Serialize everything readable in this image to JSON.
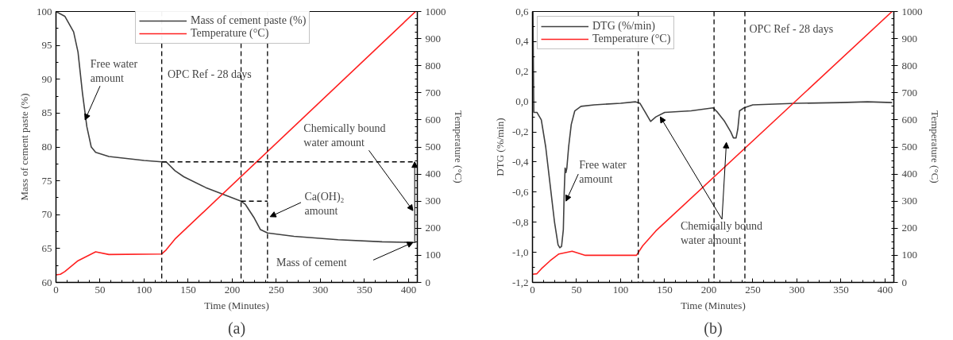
{
  "chart_data": [
    {
      "type": "line",
      "title": "(a)",
      "xlabel": "Time (Minutes)",
      "ylabel": "Mass of cement paste (%)",
      "y2label": "Temperature (°C)",
      "xlim": [
        0,
        410
      ],
      "xticks": [
        0,
        50,
        100,
        150,
        200,
        250,
        300,
        350,
        400
      ],
      "ylim": [
        60,
        100
      ],
      "yticks": [
        60,
        65,
        70,
        75,
        80,
        85,
        90,
        95,
        100
      ],
      "y2lim": [
        0,
        1000
      ],
      "y2ticks": [
        0,
        100,
        200,
        300,
        400,
        500,
        600,
        700,
        800,
        900,
        1000
      ],
      "grid": false,
      "legend": "top",
      "line_style": "solid",
      "marker": "none",
      "series": [
        {
          "name": "Mass of cement paste (%)",
          "color": "#404040",
          "x": [
            0,
            10,
            20,
            25,
            30,
            35,
            40,
            45,
            60,
            100,
            120,
            125,
            135,
            145,
            170,
            190,
            210,
            215,
            225,
            232,
            240,
            270,
            320,
            370,
            408
          ],
          "values": [
            100,
            99.3,
            97,
            94,
            88,
            83,
            80,
            79.2,
            78.6,
            78,
            77.8,
            77.8,
            76.5,
            75.6,
            74,
            73,
            72,
            71.5,
            69.5,
            67.8,
            67.3,
            66.8,
            66.3,
            66,
            65.9
          ]
        },
        {
          "name": "Temperature (°C)",
          "color": "#ff2020",
          "axis": "y2",
          "x": [
            0,
            5,
            10,
            25,
            45,
            60,
            120,
            125,
            135,
            408
          ],
          "values": [
            28,
            30,
            40,
            80,
            113,
            103,
            105,
            120,
            160,
            1000
          ]
        },
        {
          "color": "#000000",
          "line_style": "dashed",
          "x": [
            120,
            408
          ],
          "values": [
            77.8,
            77.8
          ]
        },
        {
          "color": "#000000",
          "line_style": "dashed",
          "x": [
            210,
            240
          ],
          "values": [
            72,
            72
          ]
        }
      ],
      "ref_lines": [
        {
          "axis": "x",
          "value": 120,
          "line_style": "dashed",
          "color": "#000000"
        },
        {
          "axis": "x",
          "value": 210,
          "line_style": "dashed",
          "color": "#000000"
        },
        {
          "axis": "x",
          "value": 240,
          "line_style": "dashed",
          "color": "#000000"
        }
      ],
      "annotations": [
        {
          "text": "Free water\namount",
          "x": 33,
          "y": 84
        },
        "OPC Ref - 28 days",
        "Chemically bound\nwater amount",
        {
          "text": "Ca(OH)₂\namount",
          "x": 243,
          "y": 69.7
        },
        "Mass of cement"
      ]
    },
    {
      "type": "line",
      "title": "(b)",
      "xlabel": "Time (Minutes)",
      "ylabel": "DTG (%/min)",
      "y2label": "Temperature (°C)",
      "xlim": [
        0,
        410
      ],
      "xticks": [
        0,
        50,
        100,
        150,
        200,
        250,
        300,
        350,
        400
      ],
      "ylim": [
        -1.2,
        0.6
      ],
      "yticks": [
        {
          "value": -1.2,
          "label": "-1,2"
        },
        {
          "value": -1.0,
          "label": "-1,0"
        },
        {
          "value": -0.8,
          "label": "-0,8"
        },
        {
          "value": -0.6,
          "label": "-0,6"
        },
        {
          "value": -0.4,
          "label": "-0,4"
        },
        {
          "value": -0.2,
          "label": "-0,2"
        },
        {
          "value": 0.0,
          "label": "0,0"
        },
        {
          "value": 0.2,
          "label": "0,2"
        },
        {
          "value": 0.4,
          "label": "0,4"
        },
        {
          "value": 0.6,
          "label": "0,6"
        }
      ],
      "y2lim": [
        0,
        1000
      ],
      "y2ticks": [
        0,
        100,
        200,
        300,
        400,
        500,
        600,
        700,
        800,
        900,
        1000
      ],
      "grid": false,
      "legend": "top left",
      "line_style": "solid",
      "marker": "none",
      "series": [
        {
          "name": "DTG (%/min)",
          "color": "#404040",
          "x": [
            0.5,
            1.5,
            5,
            10,
            15,
            20,
            25,
            29,
            31,
            33,
            35,
            36,
            37,
            38,
            39,
            41,
            44,
            48,
            55,
            70,
            100,
            117,
            122,
            128,
            134,
            140,
            150,
            180,
            205,
            210,
            218,
            225,
            228,
            231,
            233,
            235,
            240,
            250,
            300,
            350,
            380,
            408
          ],
          "values": [
            0.6,
            -0.07,
            -0.07,
            -0.12,
            -0.3,
            -0.55,
            -0.8,
            -0.95,
            -0.97,
            -0.96,
            -0.85,
            -0.6,
            -0.44,
            -0.47,
            -0.44,
            -0.3,
            -0.15,
            -0.06,
            -0.03,
            -0.02,
            -0.01,
            0.0,
            -0.01,
            -0.07,
            -0.13,
            -0.1,
            -0.07,
            -0.06,
            -0.04,
            -0.07,
            -0.13,
            -0.2,
            -0.24,
            -0.24,
            -0.18,
            -0.06,
            -0.04,
            -0.02,
            -0.01,
            -0.005,
            0.0,
            -0.005
          ]
        },
        {
          "name": "Temperature (°C)",
          "color": "#ff2020",
          "axis": "y2",
          "x": [
            0,
            5,
            10,
            20,
            30,
            45,
            60,
            118,
            125,
            140,
            408
          ],
          "values": [
            30,
            32,
            50,
            80,
            105,
            115,
            100,
            100,
            135,
            190,
            1000
          ]
        }
      ],
      "ref_lines": [
        {
          "axis": "x",
          "value": 120,
          "line_style": "dashed",
          "color": "#000000"
        },
        {
          "axis": "x",
          "value": 206,
          "line_style": "dashed",
          "color": "#000000"
        },
        {
          "axis": "x",
          "value": 241,
          "line_style": "dashed",
          "color": "#000000"
        }
      ],
      "annotations": [
        {
          "text": "Free water\namount",
          "x": 38,
          "y": -0.66
        },
        {
          "text": "Chemically bound\nwater amount",
          "x": 145,
          "y": -0.1
        },
        "OPC Ref - 28 days"
      ]
    }
  ]
}
